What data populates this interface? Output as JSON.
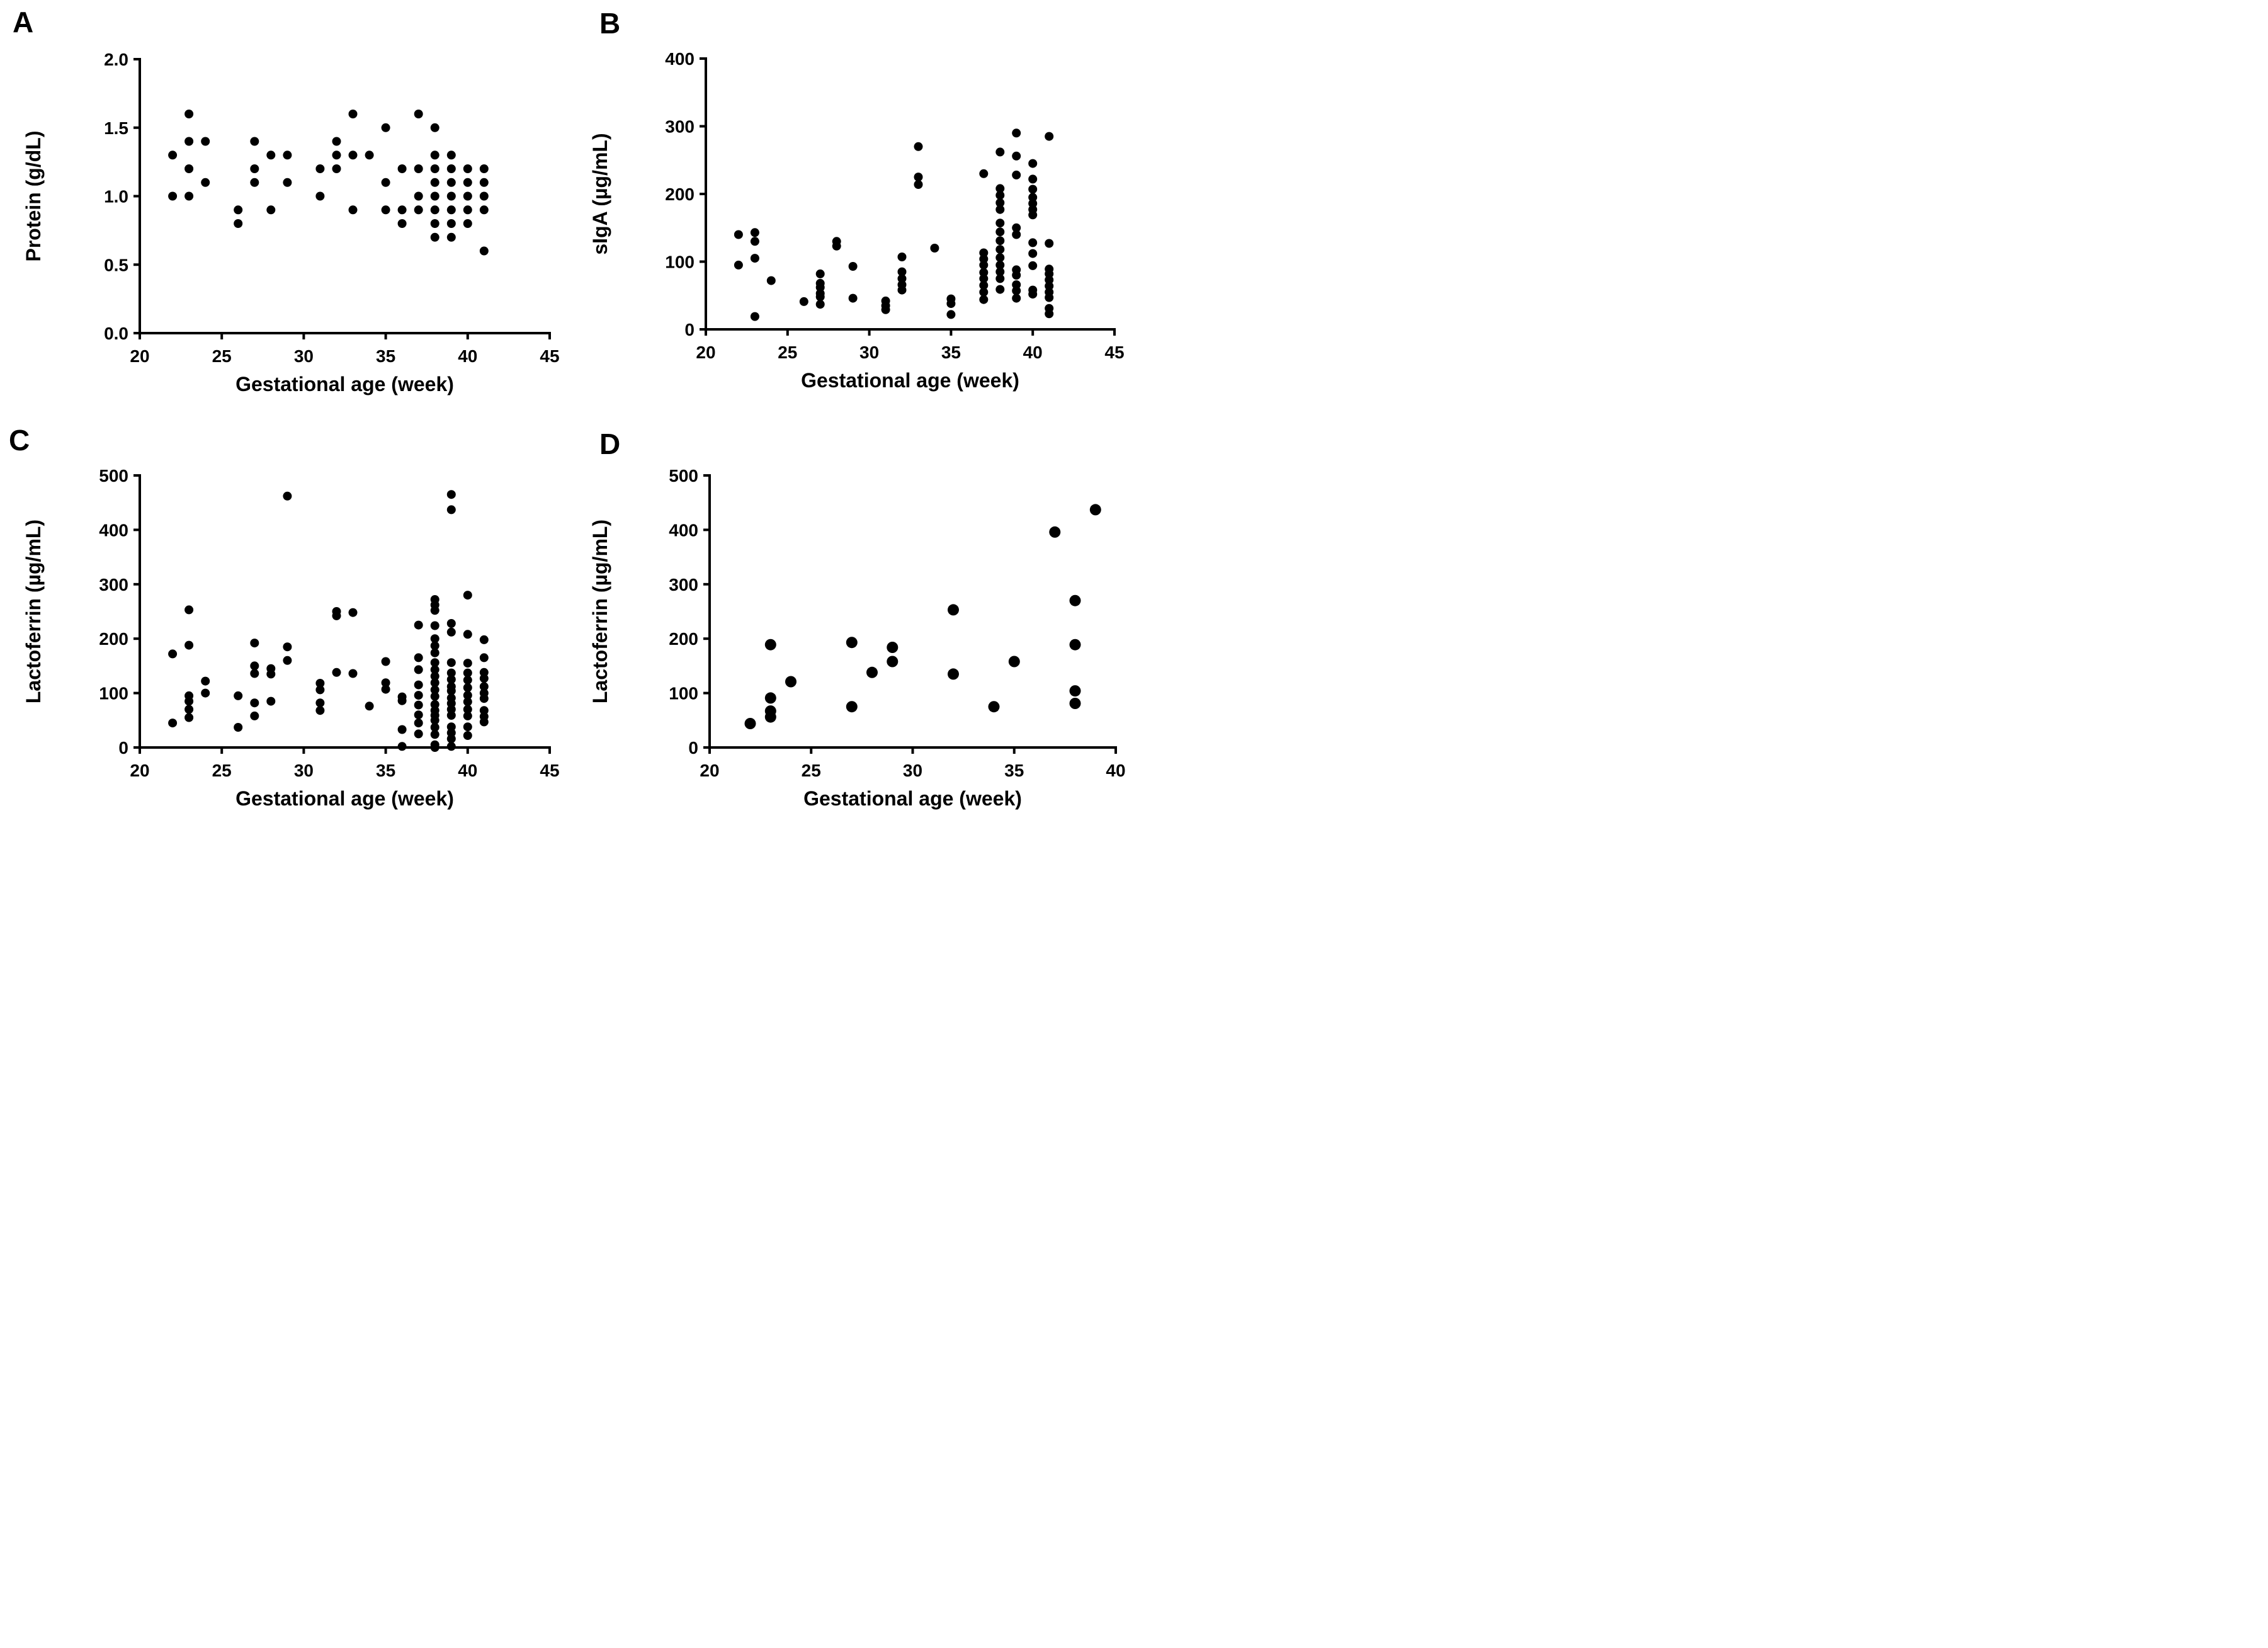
{
  "figure": {
    "background_color": "#ffffff",
    "axis_color": "#000000",
    "dot_color": "#000000"
  },
  "chart_data": [
    {
      "panel": "A",
      "type": "scatter",
      "xlabel": "Gestational age (week)",
      "ylabel": "Protein (g/dL)",
      "xlim": [
        20,
        45
      ],
      "ylim": [
        0.0,
        2.0
      ],
      "xticks": [
        20,
        25,
        30,
        35,
        40,
        45
      ],
      "yticks": [
        0.0,
        0.5,
        1.0,
        1.5,
        2.0
      ],
      "ytick_decimals": 1,
      "grid": false,
      "legend": "none",
      "points": [
        [
          22,
          1.3
        ],
        [
          22,
          1.0
        ],
        [
          23,
          1.6
        ],
        [
          23,
          1.4
        ],
        [
          23,
          1.2
        ],
        [
          23,
          1.0
        ],
        [
          24,
          1.4
        ],
        [
          24,
          1.1
        ],
        [
          26,
          0.9
        ],
        [
          26,
          0.8
        ],
        [
          27,
          1.4
        ],
        [
          27,
          1.2
        ],
        [
          27,
          1.1
        ],
        [
          28,
          1.3
        ],
        [
          28,
          0.9
        ],
        [
          29,
          1.3
        ],
        [
          29,
          1.1
        ],
        [
          31,
          1.2
        ],
        [
          31,
          1.0
        ],
        [
          32,
          1.4
        ],
        [
          32,
          1.3
        ],
        [
          32,
          1.2
        ],
        [
          33,
          1.6
        ],
        [
          33,
          1.3
        ],
        [
          33,
          0.9
        ],
        [
          34,
          1.3
        ],
        [
          35,
          1.5
        ],
        [
          35,
          1.1
        ],
        [
          35,
          0.9
        ],
        [
          36,
          1.2
        ],
        [
          36,
          0.9
        ],
        [
          36,
          0.8
        ],
        [
          37,
          1.6
        ],
        [
          37,
          1.2
        ],
        [
          37,
          1.0
        ],
        [
          37,
          0.9
        ],
        [
          38,
          1.5
        ],
        [
          38,
          1.3
        ],
        [
          38,
          1.2
        ],
        [
          38,
          1.1
        ],
        [
          38,
          1.0
        ],
        [
          38,
          0.9
        ],
        [
          38,
          0.8
        ],
        [
          38,
          0.7
        ],
        [
          39,
          1.3
        ],
        [
          39,
          1.2
        ],
        [
          39,
          1.1
        ],
        [
          39,
          1.0
        ],
        [
          39,
          0.9
        ],
        [
          39,
          0.8
        ],
        [
          39,
          0.7
        ],
        [
          40,
          1.2
        ],
        [
          40,
          1.1
        ],
        [
          40,
          1.0
        ],
        [
          40,
          0.9
        ],
        [
          40,
          0.8
        ],
        [
          41,
          1.2
        ],
        [
          41,
          1.1
        ],
        [
          41,
          1.0
        ],
        [
          41,
          0.9
        ],
        [
          41,
          0.6
        ]
      ]
    },
    {
      "panel": "B",
      "type": "scatter",
      "xlabel": "Gestational age (week)",
      "ylabel": "sIgA (µg/mL)",
      "xlim": [
        20,
        45
      ],
      "ylim": [
        0,
        400
      ],
      "xticks": [
        20,
        25,
        30,
        35,
        40,
        45
      ],
      "yticks": [
        0,
        100,
        200,
        300,
        400
      ],
      "ytick_decimals": 0,
      "grid": false,
      "legend": "none",
      "points": [
        [
          22,
          140
        ],
        [
          22,
          95
        ],
        [
          23,
          143
        ],
        [
          23,
          130
        ],
        [
          23,
          105
        ],
        [
          23,
          19
        ],
        [
          24,
          72
        ],
        [
          26,
          41
        ],
        [
          27,
          82
        ],
        [
          27,
          68
        ],
        [
          27,
          62
        ],
        [
          27,
          53
        ],
        [
          27,
          48
        ],
        [
          27,
          37
        ],
        [
          28,
          130
        ],
        [
          28,
          123
        ],
        [
          29,
          93
        ],
        [
          29,
          46
        ],
        [
          31,
          42
        ],
        [
          31,
          35
        ],
        [
          31,
          29
        ],
        [
          32,
          107
        ],
        [
          32,
          85
        ],
        [
          32,
          75
        ],
        [
          32,
          66
        ],
        [
          32,
          58
        ],
        [
          33,
          270
        ],
        [
          33,
          225
        ],
        [
          33,
          214
        ],
        [
          34,
          120
        ],
        [
          35,
          45
        ],
        [
          35,
          38
        ],
        [
          35,
          22
        ],
        [
          37,
          230
        ],
        [
          37,
          113
        ],
        [
          37,
          104
        ],
        [
          37,
          95
        ],
        [
          37,
          84
        ],
        [
          37,
          75
        ],
        [
          37,
          65
        ],
        [
          37,
          55
        ],
        [
          37,
          44
        ],
        [
          38,
          262
        ],
        [
          38,
          208
        ],
        [
          38,
          198
        ],
        [
          38,
          187
        ],
        [
          38,
          177
        ],
        [
          38,
          157
        ],
        [
          38,
          144
        ],
        [
          38,
          131
        ],
        [
          38,
          118
        ],
        [
          38,
          106
        ],
        [
          38,
          95
        ],
        [
          38,
          85
        ],
        [
          38,
          75
        ],
        [
          38,
          59
        ],
        [
          39,
          290
        ],
        [
          39,
          256
        ],
        [
          39,
          228
        ],
        [
          39,
          150
        ],
        [
          39,
          140
        ],
        [
          39,
          88
        ],
        [
          39,
          80
        ],
        [
          39,
          66
        ],
        [
          39,
          57
        ],
        [
          39,
          46
        ],
        [
          40,
          245
        ],
        [
          40,
          222
        ],
        [
          40,
          207
        ],
        [
          40,
          195
        ],
        [
          40,
          186
        ],
        [
          40,
          177
        ],
        [
          40,
          169
        ],
        [
          40,
          128
        ],
        [
          40,
          112
        ],
        [
          40,
          94
        ],
        [
          40,
          58
        ],
        [
          40,
          52
        ],
        [
          41,
          285
        ],
        [
          41,
          127
        ],
        [
          41,
          89
        ],
        [
          41,
          82
        ],
        [
          41,
          73
        ],
        [
          41,
          64
        ],
        [
          41,
          55
        ],
        [
          41,
          47
        ],
        [
          41,
          31
        ],
        [
          41,
          23
        ]
      ]
    },
    {
      "panel": "C",
      "type": "scatter",
      "xlabel": "Gestational age (week)",
      "ylabel": "Lactoferrin (µg/mL)",
      "xlim": [
        20,
        45
      ],
      "ylim": [
        0,
        500
      ],
      "xticks": [
        20,
        25,
        30,
        35,
        40,
        45
      ],
      "yticks": [
        0,
        100,
        200,
        300,
        400,
        500
      ],
      "ytick_decimals": 0,
      "grid": false,
      "legend": "none",
      "points": [
        [
          22,
          172
        ],
        [
          22,
          45
        ],
        [
          23,
          253
        ],
        [
          23,
          188
        ],
        [
          23,
          95
        ],
        [
          23,
          85
        ],
        [
          23,
          70
        ],
        [
          23,
          55
        ],
        [
          24,
          122
        ],
        [
          24,
          100
        ],
        [
          26,
          95
        ],
        [
          26,
          37
        ],
        [
          27,
          192
        ],
        [
          27,
          150
        ],
        [
          27,
          136
        ],
        [
          27,
          82
        ],
        [
          27,
          58
        ],
        [
          28,
          145
        ],
        [
          28,
          135
        ],
        [
          28,
          85
        ],
        [
          29,
          462
        ],
        [
          29,
          185
        ],
        [
          29,
          160
        ],
        [
          31,
          118
        ],
        [
          31,
          106
        ],
        [
          31,
          82
        ],
        [
          31,
          68
        ],
        [
          32,
          250
        ],
        [
          32,
          242
        ],
        [
          32,
          138
        ],
        [
          33,
          248
        ],
        [
          33,
          136
        ],
        [
          34,
          76
        ],
        [
          35,
          158
        ],
        [
          35,
          119
        ],
        [
          35,
          107
        ],
        [
          36,
          93
        ],
        [
          36,
          86
        ],
        [
          36,
          33
        ],
        [
          36,
          2
        ],
        [
          37,
          225
        ],
        [
          37,
          165
        ],
        [
          37,
          143
        ],
        [
          37,
          115
        ],
        [
          37,
          96
        ],
        [
          37,
          78
        ],
        [
          37,
          60
        ],
        [
          37,
          45
        ],
        [
          37,
          25
        ],
        [
          38,
          272
        ],
        [
          38,
          262
        ],
        [
          38,
          252
        ],
        [
          38,
          224
        ],
        [
          38,
          200
        ],
        [
          38,
          187
        ],
        [
          38,
          174
        ],
        [
          38,
          156
        ],
        [
          38,
          143
        ],
        [
          38,
          131
        ],
        [
          38,
          119
        ],
        [
          38,
          106
        ],
        [
          38,
          94
        ],
        [
          38,
          79
        ],
        [
          38,
          68
        ],
        [
          38,
          59
        ],
        [
          38,
          50
        ],
        [
          38,
          37
        ],
        [
          38,
          24
        ],
        [
          38,
          5
        ],
        [
          38,
          0
        ],
        [
          39,
          465
        ],
        [
          39,
          437
        ],
        [
          39,
          228
        ],
        [
          39,
          212
        ],
        [
          39,
          156
        ],
        [
          39,
          137
        ],
        [
          39,
          125
        ],
        [
          39,
          112
        ],
        [
          39,
          104
        ],
        [
          39,
          91
        ],
        [
          39,
          81
        ],
        [
          39,
          70
        ],
        [
          39,
          59
        ],
        [
          39,
          38
        ],
        [
          39,
          27
        ],
        [
          39,
          16
        ],
        [
          39,
          2
        ],
        [
          40,
          280
        ],
        [
          40,
          208
        ],
        [
          40,
          155
        ],
        [
          40,
          137
        ],
        [
          40,
          124
        ],
        [
          40,
          110
        ],
        [
          40,
          96
        ],
        [
          40,
          84
        ],
        [
          40,
          70
        ],
        [
          40,
          58
        ],
        [
          40,
          38
        ],
        [
          40,
          22
        ],
        [
          41,
          198
        ],
        [
          41,
          165
        ],
        [
          41,
          138
        ],
        [
          41,
          127
        ],
        [
          41,
          112
        ],
        [
          41,
          100
        ],
        [
          41,
          90
        ],
        [
          41,
          68
        ],
        [
          41,
          57
        ],
        [
          41,
          47
        ]
      ]
    },
    {
      "panel": "D",
      "type": "scatter",
      "xlabel": "Gestational age (week)",
      "ylabel": "Lactoferrin (µg/mL)",
      "xlim": [
        20,
        40
      ],
      "ylim": [
        0,
        500
      ],
      "xticks": [
        20,
        25,
        30,
        35,
        40
      ],
      "yticks": [
        0,
        100,
        200,
        300,
        400,
        500
      ],
      "ytick_decimals": 0,
      "grid": false,
      "legend": "none",
      "points": [
        [
          22,
          44
        ],
        [
          23,
          189
        ],
        [
          23,
          91
        ],
        [
          23,
          67
        ],
        [
          23,
          56
        ],
        [
          24,
          121
        ],
        [
          27,
          193
        ],
        [
          27,
          75
        ],
        [
          28,
          138
        ],
        [
          29,
          184
        ],
        [
          29,
          158
        ],
        [
          32,
          253
        ],
        [
          32,
          135
        ],
        [
          34,
          75
        ],
        [
          35,
          158
        ],
        [
          37,
          396
        ],
        [
          38,
          270
        ],
        [
          38,
          189
        ],
        [
          38,
          104
        ],
        [
          38,
          81
        ],
        [
          39,
          437
        ]
      ]
    }
  ]
}
